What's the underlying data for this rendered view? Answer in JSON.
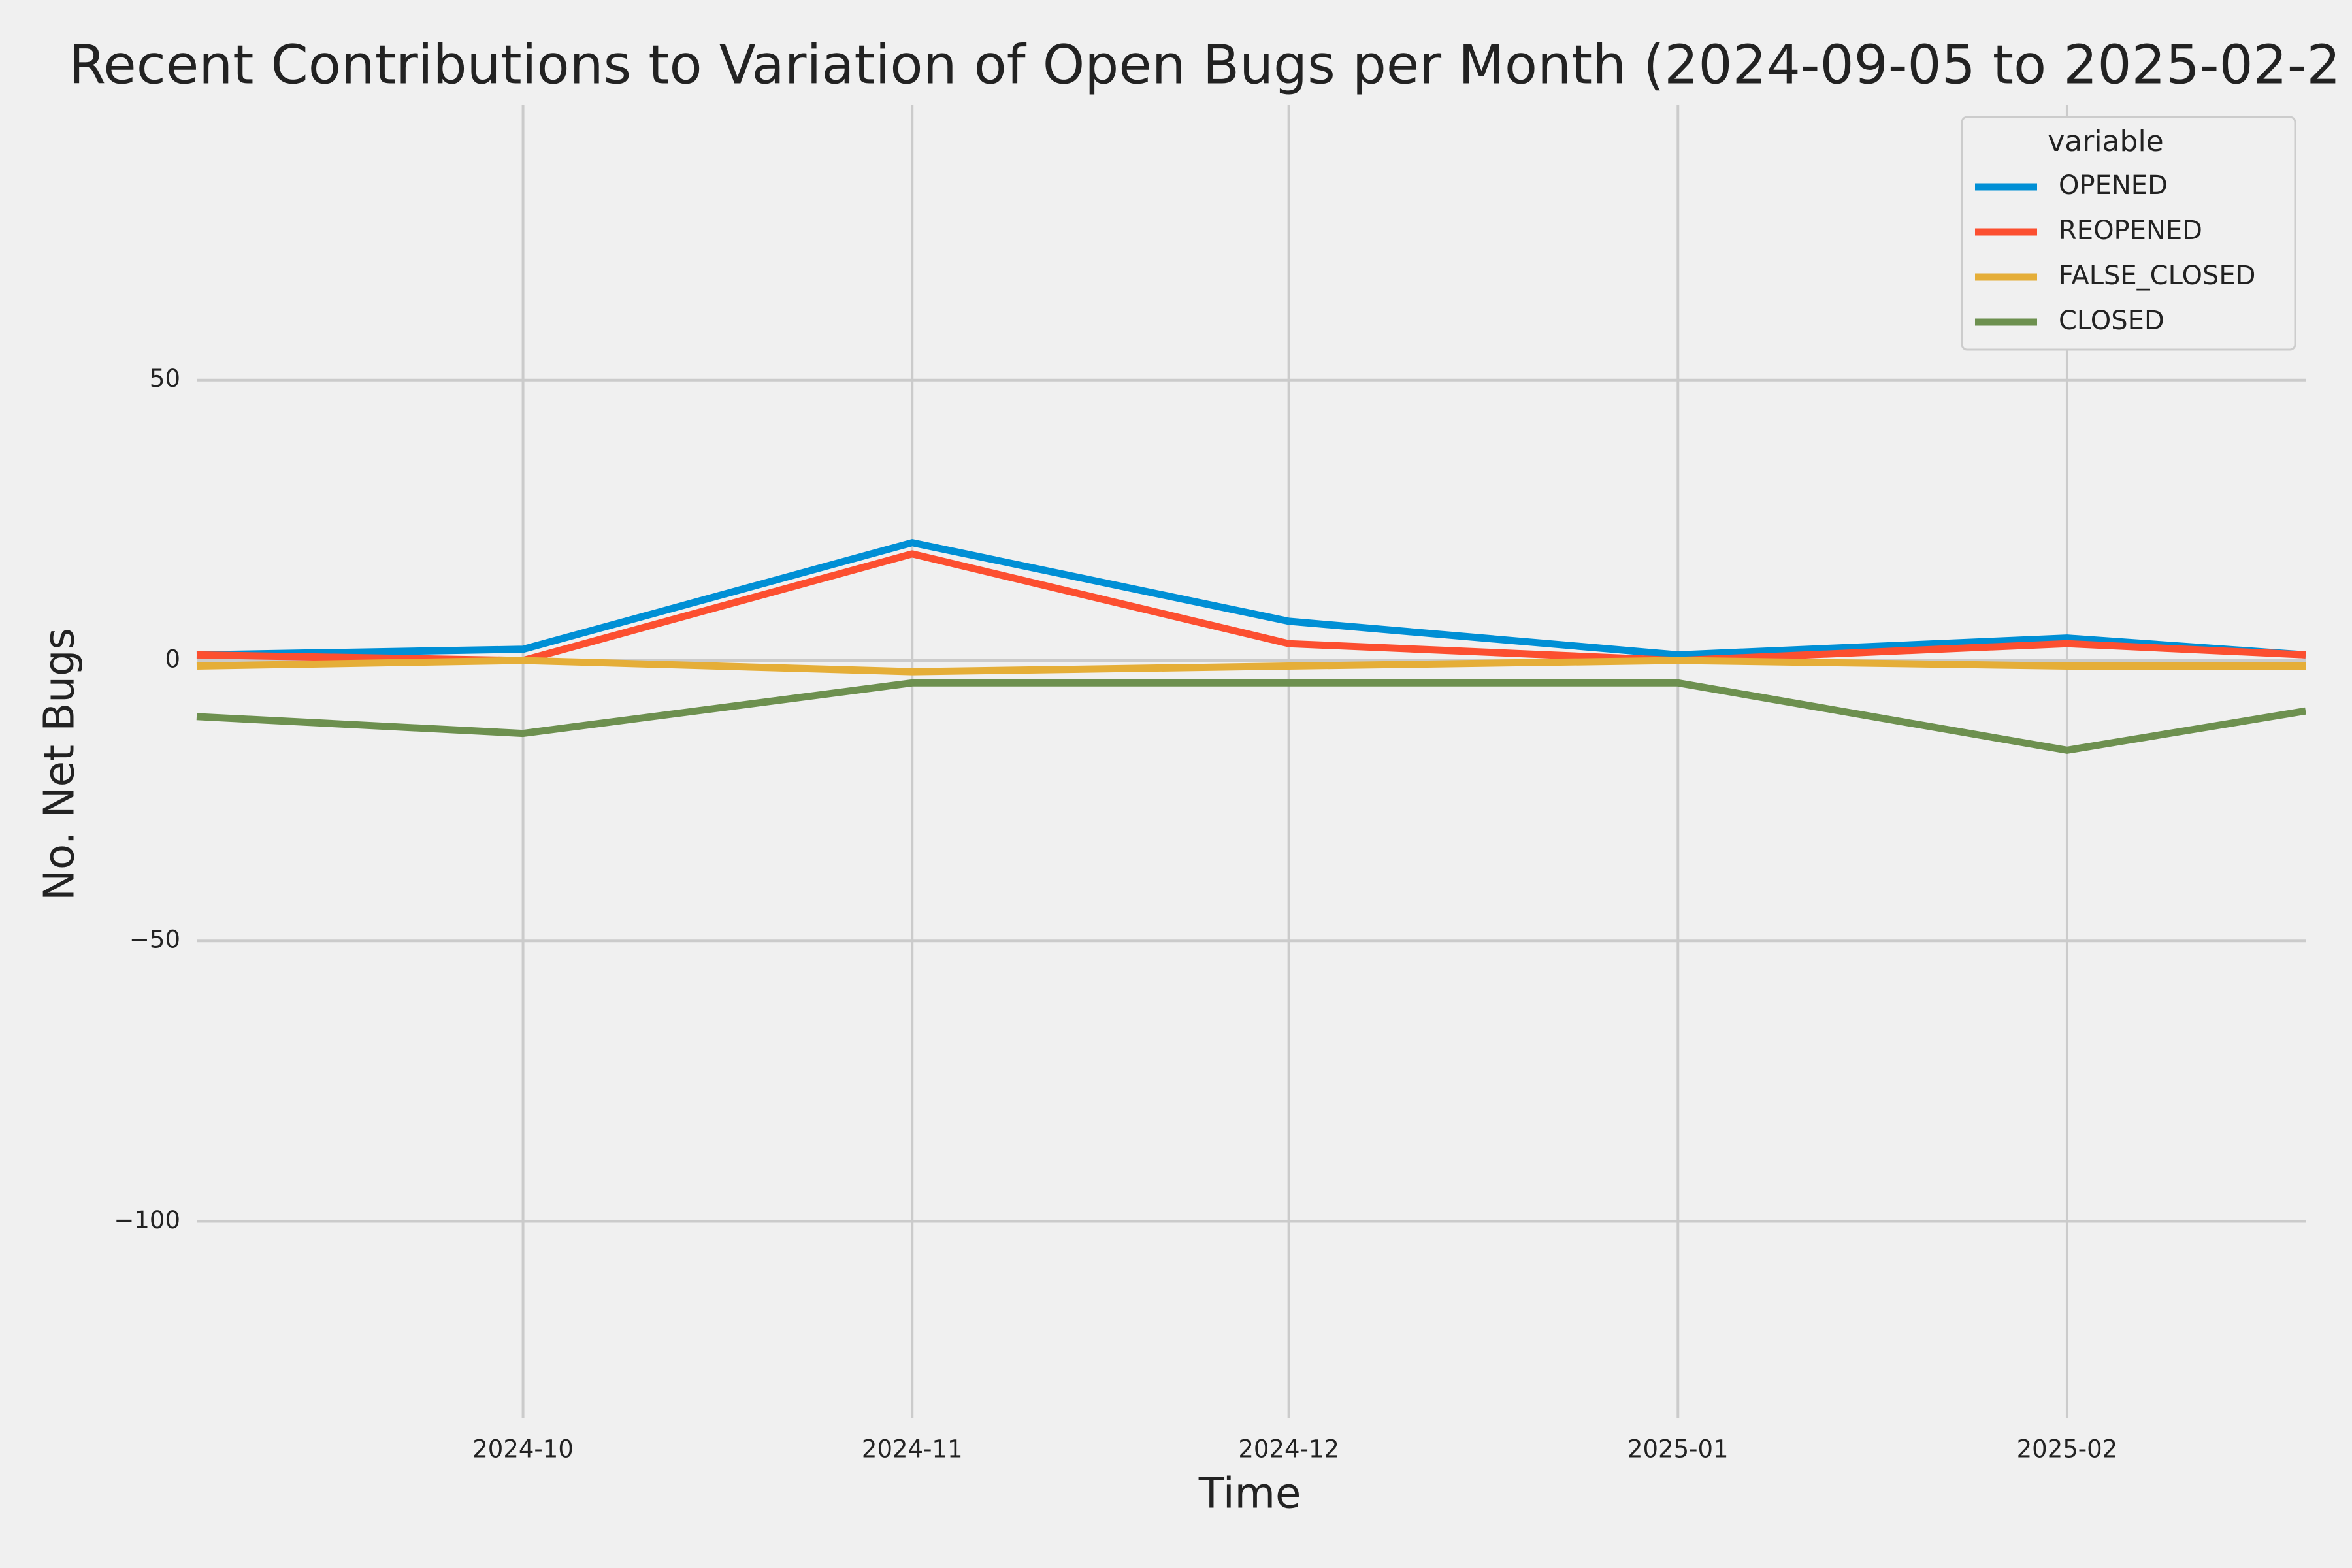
{
  "chart_data": {
    "type": "line",
    "title": "Recent Contributions to Variation of Open Bugs per Month (2024-09-05 to 2025-02-2",
    "x_label": "Time",
    "y_label": "No. Net Bugs",
    "x": [
      "2024-09-05",
      "2024-10-01",
      "2024-11-01",
      "2024-12-01",
      "2025-01-01",
      "2025-02-01",
      "2025-02-20"
    ],
    "series": [
      {
        "name": "OPENED",
        "color": "#008fd5",
        "values": [
          1,
          2,
          21,
          7,
          1,
          4,
          1
        ]
      },
      {
        "name": "REOPENED",
        "color": "#fc4f30",
        "values": [
          1,
          0,
          19,
          3,
          0,
          3,
          1
        ]
      },
      {
        "name": "FALSE_CLOSED",
        "color": "#e5ae38",
        "values": [
          -1,
          0,
          -2,
          -1,
          0,
          -1,
          -1
        ]
      },
      {
        "name": "CLOSED",
        "color": "#6d904f",
        "values": [
          -10,
          -13,
          -4,
          -4,
          -4,
          -16,
          -9
        ]
      }
    ],
    "legend_title": "variable",
    "legend": "upper right",
    "xlim": [
      "2024-09-05",
      "2025-02-20"
    ],
    "xticks": [
      {
        "value": "2024-10-01",
        "label": "2024-10"
      },
      {
        "value": "2024-11-01",
        "label": "2024-11"
      },
      {
        "value": "2024-12-01",
        "label": "2024-12"
      },
      {
        "value": "2025-01-01",
        "label": "2025-01"
      },
      {
        "value": "2025-02-01",
        "label": "2025-02"
      }
    ],
    "ylim": [
      -135,
      99
    ],
    "yticks": [
      {
        "value": -100,
        "label": "−100"
      },
      {
        "value": -50,
        "label": "−50"
      },
      0,
      50
    ],
    "grid": true
  }
}
